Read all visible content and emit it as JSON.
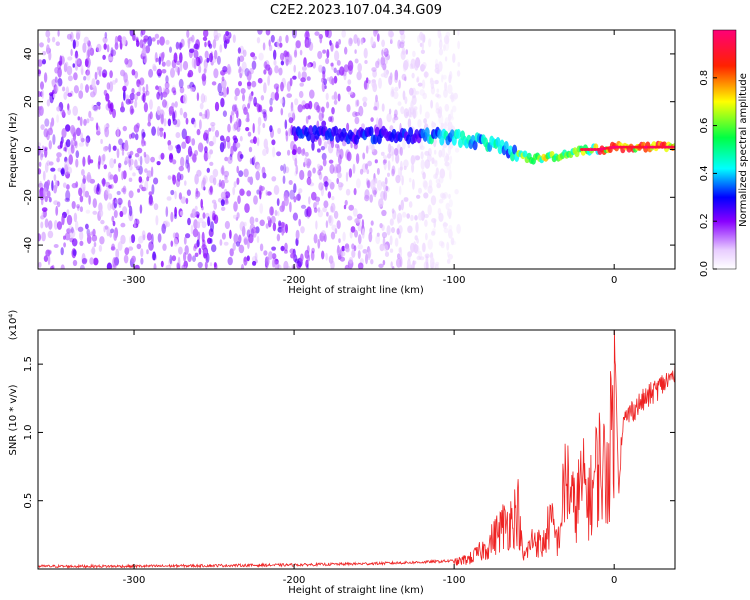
{
  "title": "C2E2.2023.107.04.34.G09",
  "chart_data": [
    {
      "type": "heatmap",
      "xlabel": "Height of straight line (km)",
      "ylabel": "Frequency (Hz)",
      "xlim": [
        -360,
        38
      ],
      "ylim": [
        -50,
        50
      ],
      "x_ticks": [
        -300,
        -200,
        -100,
        0
      ],
      "y_ticks": [
        -40,
        -20,
        0,
        20,
        40
      ],
      "colorbar": {
        "label": "Normalized spectral amplitude",
        "range": [
          0,
          1
        ],
        "ticks": [
          "0.0",
          "0.2",
          "0.4",
          "0.6",
          "0.8"
        ],
        "tick_values": [
          0,
          0.2,
          0.4,
          0.6,
          0.8
        ]
      },
      "ridge": {
        "x": [
          -200,
          -160,
          -120,
          -100,
          -80,
          -60,
          -50,
          -40,
          -30,
          -20,
          -10,
          0,
          10,
          38
        ],
        "y": [
          7,
          6,
          6,
          5,
          3,
          -2,
          -4,
          -3,
          -2,
          0,
          0,
          1,
          1,
          1
        ]
      },
      "noise_extent_x": [
        -360,
        -97
      ],
      "grid": false
    },
    {
      "type": "line",
      "xlabel": "Height of straight line (km)",
      "ylabel": "SNR (10 * v/v)",
      "y_multiplier": "(x10⁴)",
      "xlim": [
        -360,
        38
      ],
      "ylim": [
        0,
        1.75
      ],
      "x_ticks": [
        -300,
        -200,
        -100,
        0
      ],
      "y_ticks": [
        0.5,
        1.0,
        1.5
      ],
      "y_tick_labels": [
        "0.5",
        "1.0",
        "1.5"
      ],
      "series": [
        {
          "color": "#ee2222",
          "x": [
            -360,
            -300,
            -250,
            -200,
            -150,
            -120,
            -100,
            -90,
            -80,
            -75,
            -70,
            -65,
            -60,
            -57,
            -55,
            -50,
            -45,
            -40,
            -35,
            -30,
            -25,
            -20,
            -15,
            -10,
            -5,
            -2,
            0,
            3,
            5,
            10,
            20,
            30,
            38
          ],
          "y": [
            0.02,
            0.02,
            0.025,
            0.03,
            0.04,
            0.05,
            0.06,
            0.1,
            0.2,
            0.3,
            0.4,
            0.45,
            0.55,
            0.1,
            0.15,
            0.3,
            0.2,
            0.45,
            0.25,
            0.9,
            0.55,
            0.8,
            0.65,
            1.0,
            0.9,
            1.2,
            1.75,
            0.6,
            1.05,
            1.15,
            1.25,
            1.35,
            1.42
          ]
        }
      ],
      "grid": false
    }
  ]
}
